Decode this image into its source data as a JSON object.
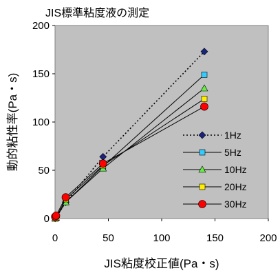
{
  "chart_data": {
    "type": "line",
    "title": "JIS標準粘度液の測定",
    "xlabel": "JIS粘度校正値(Pa・s)",
    "ylabel": "動的粘性率(Pa・s)",
    "xlim": [
      0,
      200
    ],
    "ylim": [
      0,
      200
    ],
    "xticks": [
      0,
      50,
      100,
      150,
      200
    ],
    "yticks": [
      0,
      50,
      100,
      150,
      200
    ],
    "grid": false,
    "plot_background": "#c0c0c0",
    "legend_position": "right",
    "series": [
      {
        "name": "1Hz",
        "style": "dotted",
        "marker": "diamond",
        "marker_color": "#1a237e",
        "x": [
          0.1,
          1,
          10,
          45,
          140
        ],
        "y": [
          0.1,
          1,
          17,
          64,
          173
        ]
      },
      {
        "name": "5Hz",
        "style": "solid",
        "marker": "square",
        "marker_color": "#33ccff",
        "x": [
          0.1,
          1,
          10,
          45,
          140
        ],
        "y": [
          0.1,
          1,
          17,
          54,
          149
        ]
      },
      {
        "name": "10Hz",
        "style": "solid",
        "marker": "triangle",
        "marker_color": "#66ee44",
        "x": [
          0.1,
          1,
          10,
          45,
          140
        ],
        "y": [
          0.1,
          1,
          17,
          52,
          135
        ]
      },
      {
        "name": "20Hz",
        "style": "solid",
        "marker": "square",
        "marker_color": "#ffee00",
        "x": [
          0.1,
          1,
          10,
          45,
          140
        ],
        "y": [
          0.1,
          1,
          20,
          55,
          124
        ]
      },
      {
        "name": "30Hz",
        "style": "solid",
        "marker": "circle",
        "marker_color": "#ff0000",
        "x": [
          0.1,
          1,
          10,
          45,
          140
        ],
        "y": [
          2,
          3,
          22,
          57,
          116
        ]
      }
    ]
  }
}
